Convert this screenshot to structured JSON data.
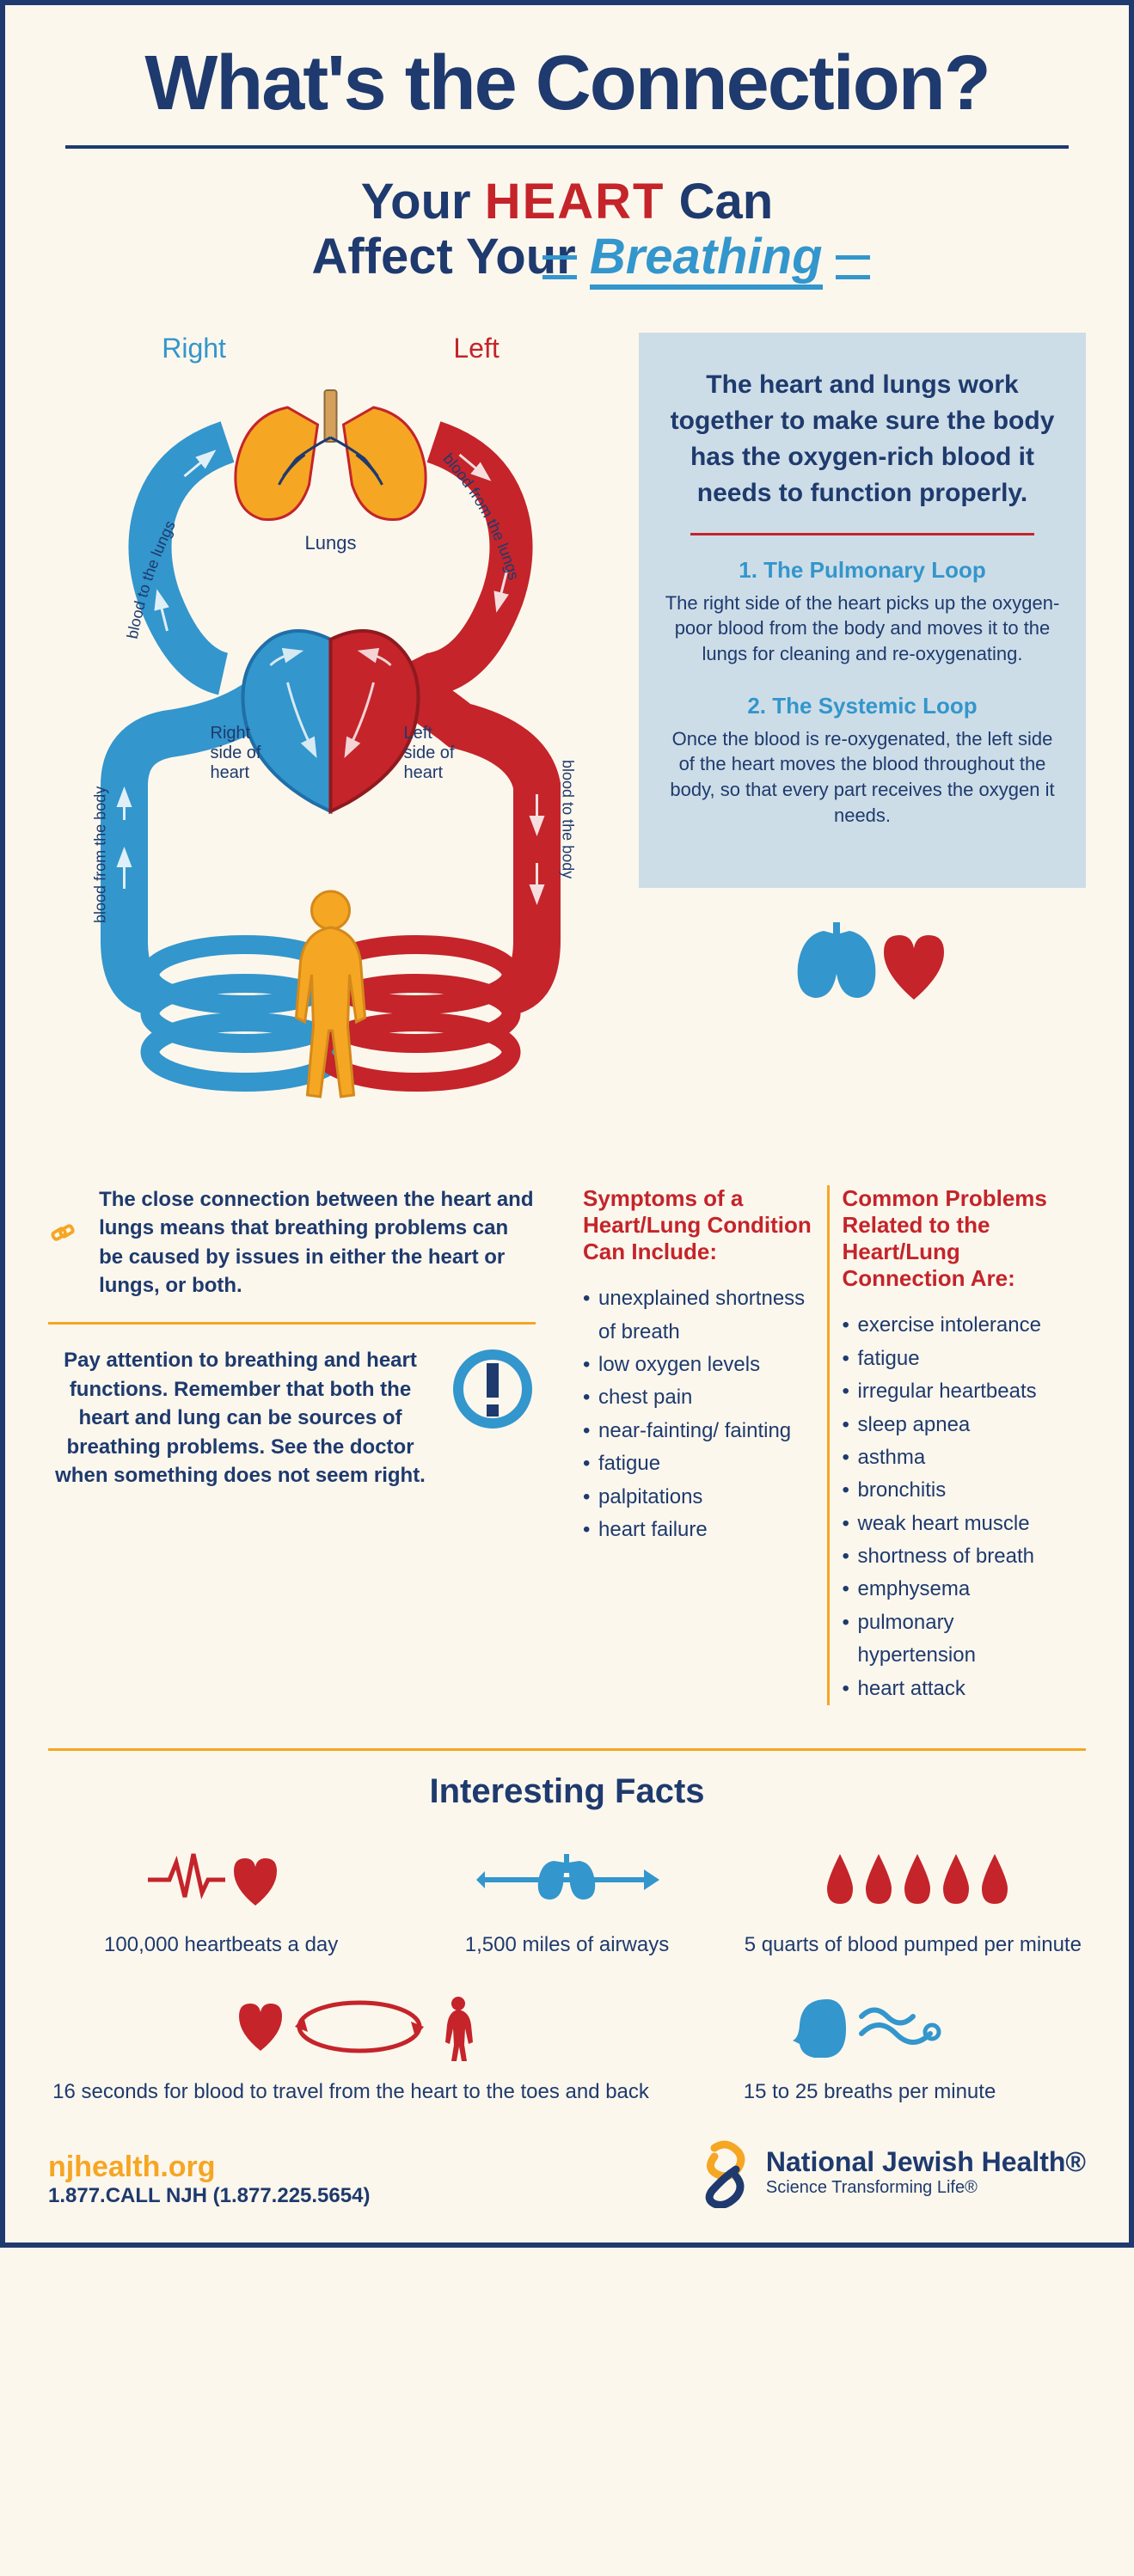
{
  "title": "What's the Connection?",
  "subtitle": {
    "your": "Your",
    "heart": "HEART",
    "can": "Can",
    "affect": "Affect Your",
    "breathing": "Breathing"
  },
  "diagram": {
    "right_label": "Right",
    "left_label": "Left",
    "lungs_label": "Lungs",
    "right_heart": "Right side of heart",
    "left_heart": "Left side of heart",
    "path_labels": {
      "to_lungs": "blood to the lungs",
      "from_lungs": "blood from the lungs",
      "from_body": "blood from the body",
      "to_body": "blood to the body"
    },
    "colors": {
      "blue": "#3396cc",
      "dark_blue": "#1f6fa8",
      "red": "#c4242a",
      "dark_red": "#8f1a1f",
      "orange": "#f5a623",
      "body_fill": "#f5a623"
    }
  },
  "info": {
    "heading": "The heart and lungs work together to make sure the body has the oxygen-rich blood it needs to function properly.",
    "loop1_title": "1. The Pulmonary Loop",
    "loop1_text": "The right side of the heart picks up the oxygen-poor blood from the body and moves it to the lungs for cleaning and re-oxygenating.",
    "loop2_title": "2. The Systemic Loop",
    "loop2_text": "Once the blood is re-oxygenated, the left side of the heart moves the blood throughout the body, so that every part receives the oxygen it needs.",
    "bg_color": "#cddde7"
  },
  "connection_text": "The close connection between the heart and lungs means that breathing problems can be caused by issues in either the heart or lungs, or both.",
  "attention_text": "Pay attention to breathing and heart functions. Remember that both the heart and lung can be sources of breathing problems. See the doctor when something does not seem right.",
  "symptoms": {
    "heading": "Symptoms of a Heart/Lung Condition Can Include:",
    "items": [
      "unexplained shortness of breath",
      "low oxygen levels",
      "chest pain",
      "near-fainting/ fainting",
      "fatigue",
      "palpitations",
      "heart failure"
    ]
  },
  "problems": {
    "heading": "Common Problems Related to the Heart/Lung Connection Are:",
    "items": [
      "exercise intolerance",
      "fatigue",
      "irregular heartbeats",
      "sleep apnea",
      "asthma",
      "bronchitis",
      "weak heart muscle",
      "shortness of breath",
      "emphysema",
      "pulmonary hypertension",
      "heart attack"
    ]
  },
  "facts": {
    "title": "Interesting Facts",
    "heartbeats": "100,000 heartbeats a day",
    "airways": "1,500 miles of airways",
    "blood_pumped": "5 quarts of blood pumped per minute",
    "travel_time": "16 seconds for blood to travel from the heart to the toes and back",
    "breaths": "15 to 25 breaths per minute"
  },
  "footer": {
    "url": "njhealth.org",
    "phone": "1.877.CALL NJH (1.877.225.5654)",
    "org_name": "National Jewish Health®",
    "tagline": "Science Transforming Life®"
  },
  "colors": {
    "navy": "#1e3a6e",
    "red": "#c4242a",
    "blue": "#3396cc",
    "orange": "#f5a623",
    "cream": "#fcf7ed",
    "info_bg": "#cddde7"
  }
}
